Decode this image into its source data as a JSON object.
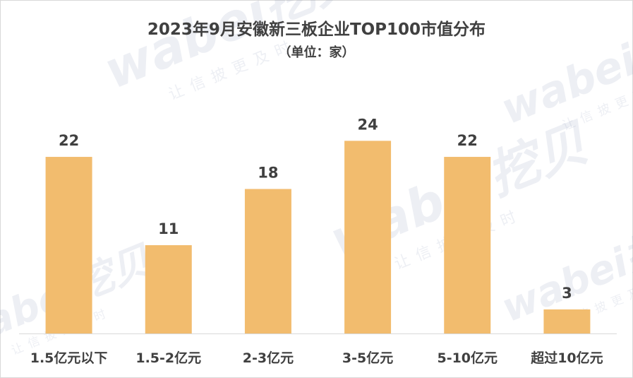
{
  "chart_data": {
    "type": "bar",
    "title": "2023年9月安徽新三板企业TOP100市值分布",
    "subtitle": "（单位：家）",
    "categories": [
      "1.5亿元以下",
      "1.5-2亿元",
      "2-3亿元",
      "3-5亿元",
      "5-10亿元",
      "超过10亿元"
    ],
    "values": [
      22,
      11,
      18,
      24,
      22,
      3
    ],
    "data_labels": [
      "22",
      "11",
      "18",
      "24",
      "22",
      "3"
    ],
    "xlabel": "",
    "ylabel": "",
    "ylim": [
      0,
      25.7
    ],
    "grid": false,
    "legend": "none",
    "colors": {
      "bar": "#F2BC6E",
      "text": "#404040",
      "axis": "#d9d9d9"
    }
  },
  "watermark": {
    "logo": "wabei挖贝",
    "tagline": "让信披更及时"
  }
}
